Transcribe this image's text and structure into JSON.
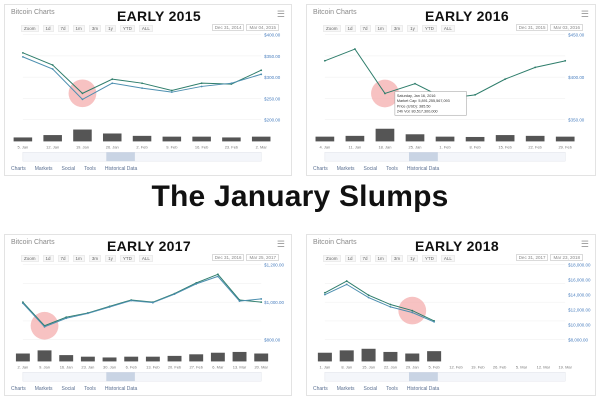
{
  "headline": "The January Slumps",
  "panel_title": "Bitcoin Charts",
  "zoom_buttons": [
    "Zoom",
    "1d",
    "7d",
    "1m",
    "3m",
    "1y",
    "YTD",
    "ALL"
  ],
  "footer_links": [
    "Charts",
    "Markets",
    "Social",
    "Tools",
    "Historical Data"
  ],
  "colors": {
    "price_line": "#2e7d6b",
    "volume": "#555555",
    "highlight": "#f4a8a8",
    "navigator": "#c9d4e4"
  },
  "chart_data": [
    {
      "type": "line",
      "title": "EARLY 2015",
      "from": "Dec 31, 2014",
      "to": "Mar 04, 2015",
      "x": [
        "5. Jan",
        "12. Jan",
        "19. Jan",
        "26. Jan",
        "2. Feb",
        "9. Feb",
        "16. Feb",
        "23. Feb",
        "2. Mar"
      ],
      "series": [
        {
          "values": [
            315,
            285,
            215,
            250,
            240,
            222,
            240,
            238,
            272
          ]
        },
        {
          "values": [
            305,
            275,
            200,
            240,
            228,
            218,
            232,
            240,
            262
          ]
        }
      ],
      "volume": [
        0.25,
        0.4,
        0.75,
        0.5,
        0.35,
        0.3,
        0.3,
        0.25,
        0.3
      ],
      "ylim": [
        150,
        360
      ],
      "y_ticks": [
        "$400.00",
        "$350.00",
        "$300.00",
        "$250.00",
        "$200.00"
      ],
      "highlight_index": 2
    },
    {
      "type": "line",
      "title": "EARLY 2016",
      "from": "Dec 31, 2015",
      "to": "Mar 03, 2016",
      "x": [
        "4. Jan",
        "11. Jan",
        "18. Jan",
        "25. Jan",
        "1. Feb",
        "8. Feb",
        "15. Feb",
        "22. Feb",
        "29. Feb"
      ],
      "series": [
        {
          "values": [
            430,
            448,
            380,
            395,
            372,
            378,
            402,
            420,
            430
          ]
        }
      ],
      "volume": [
        0.3,
        0.35,
        0.8,
        0.45,
        0.3,
        0.28,
        0.4,
        0.35,
        0.3
      ],
      "ylim": [
        340,
        470
      ],
      "y_ticks": [
        "$450.00",
        "$400.00",
        "$350.00"
      ],
      "highlight_index": 2,
      "tooltip": [
        "Saturday, Jan 16, 2016",
        "Market Cap: 5,891,255,567,093",
        "Price (USD): 385.50",
        "24h Vol: 80,517,300,000"
      ]
    },
    {
      "type": "line",
      "title": "EARLY 2017",
      "from": "Dec 31, 2016",
      "to": "Mar 25, 2017",
      "x": [
        "2. Jan",
        "9. Jan",
        "16. Jan",
        "23. Jan",
        "30. Jan",
        "6. Feb",
        "13. Feb",
        "20. Feb",
        "27. Feb",
        "6. Mar",
        "13. Mar",
        "20. Mar"
      ],
      "series": [
        {
          "values": [
            1000,
            780,
            860,
            900,
            960,
            1020,
            1000,
            1080,
            1180,
            1260,
            1020,
            1000
          ]
        },
        {
          "values": [
            990,
            770,
            850,
            895,
            955,
            1015,
            995,
            1075,
            1170,
            1240,
            1010,
            1030
          ]
        }
      ],
      "volume": [
        0.5,
        0.7,
        0.4,
        0.3,
        0.25,
        0.3,
        0.3,
        0.35,
        0.45,
        0.55,
        0.6,
        0.5
      ],
      "ylim": [
        650,
        1350
      ],
      "y_ticks": [
        "$1,200.00",
        "$1,000.00",
        "$800.00"
      ],
      "highlight_index": 1
    },
    {
      "type": "line",
      "title": "EARLY 2018",
      "from": "Dec 31, 2017",
      "to": "Mar 23, 2018",
      "x": [
        "1. Jan",
        "8. Jan",
        "15. Jan",
        "22. Jan",
        "29. Jan",
        "5. Feb",
        "12. Feb",
        "19. Feb",
        "26. Feb",
        "5. Mar",
        "12. Mar",
        "19. Mar"
      ],
      "series": [
        {
          "values": [
            14000,
            16500,
            13500,
            11500,
            10200,
            8000,
            null,
            null,
            null,
            null,
            null,
            null
          ]
        },
        {
          "values": [
            13600,
            15800,
            13000,
            11000,
            9800,
            7800,
            null,
            null,
            null,
            null,
            null,
            null
          ]
        }
      ],
      "volume": [
        0.55,
        0.7,
        0.8,
        0.6,
        0.5,
        0.65,
        0,
        0,
        0,
        0,
        0,
        0
      ],
      "ylim": [
        4000,
        20000
      ],
      "y_ticks": [
        "$18,000.00",
        "$16,000.00",
        "$14,000.00",
        "$12,000.00",
        "$10,000.00",
        "$8,000.00"
      ],
      "highlight_index": 4
    }
  ]
}
